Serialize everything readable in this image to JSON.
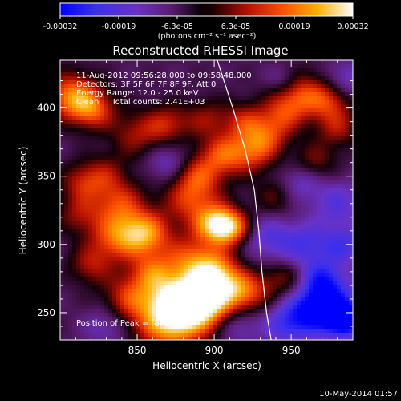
{
  "chart_data": {
    "type": "heatmap",
    "title": "Reconstructed RHESSI Image",
    "xlabel": "Heliocentric X (arcsec)",
    "ylabel": "Heliocentric Y (arcsec)",
    "xlim": [
      800,
      990
    ],
    "ylim": [
      230,
      435
    ],
    "x_ticks": [
      850,
      900,
      950
    ],
    "y_ticks": [
      250,
      300,
      350,
      400
    ],
    "colorbar": {
      "ticks": [
        "-0.00032",
        "-0.00019",
        "-6.3e-05",
        "6.3e-05",
        "0.00019",
        "0.00032"
      ],
      "range": [
        -0.00032,
        0.00032
      ],
      "unit_label": "(photons cm⁻² s⁻¹ asec⁻²)"
    },
    "annotations": [
      "11-Aug-2012 09:56:28.000 to 09:58:48.000",
      "Detectors: 3F 5F 6F 7F 8F 9F, Att 0",
      "Energy Range: 12.0 - 25.0 keV",
      "Clean     Total counts: 2.41E+03"
    ],
    "peak_label": "Position of Peak = [873,235]",
    "peak": [
      873,
      235
    ],
    "limb": [
      [
        902,
        435
      ],
      [
        912,
        400
      ],
      [
        920,
        370
      ],
      [
        926,
        340
      ],
      [
        929,
        310
      ],
      [
        931,
        280
      ],
      [
        934,
        250
      ],
      [
        937,
        230
      ]
    ],
    "blobs": [
      {
        "x": 872,
        "y": 245,
        "a": 1.0,
        "r": 16
      },
      {
        "x": 880,
        "y": 262,
        "a": 0.8,
        "r": 14
      },
      {
        "x": 895,
        "y": 255,
        "a": 0.6,
        "r": 12
      },
      {
        "x": 905,
        "y": 270,
        "a": 0.7,
        "r": 12
      },
      {
        "x": 922,
        "y": 265,
        "a": 0.5,
        "r": 10
      },
      {
        "x": 945,
        "y": 275,
        "a": 0.35,
        "r": 10
      },
      {
        "x": 845,
        "y": 262,
        "a": 0.5,
        "r": 12
      },
      {
        "x": 860,
        "y": 280,
        "a": 0.5,
        "r": 10
      },
      {
        "x": 885,
        "y": 290,
        "a": 0.55,
        "r": 12
      },
      {
        "x": 900,
        "y": 283,
        "a": 0.45,
        "r": 10
      },
      {
        "x": 855,
        "y": 308,
        "a": 0.85,
        "r": 12
      },
      {
        "x": 835,
        "y": 305,
        "a": 0.55,
        "r": 12
      },
      {
        "x": 820,
        "y": 285,
        "a": 0.4,
        "r": 10
      },
      {
        "x": 838,
        "y": 330,
        "a": 0.55,
        "r": 12
      },
      {
        "x": 815,
        "y": 345,
        "a": 0.45,
        "r": 10
      },
      {
        "x": 812,
        "y": 322,
        "a": 0.35,
        "r": 10
      },
      {
        "x": 830,
        "y": 352,
        "a": 0.3,
        "r": 10
      },
      {
        "x": 902,
        "y": 315,
        "a": 1.0,
        "r": 10
      },
      {
        "x": 912,
        "y": 312,
        "a": 0.55,
        "r": 9
      },
      {
        "x": 885,
        "y": 333,
        "a": 0.55,
        "r": 12
      },
      {
        "x": 890,
        "y": 350,
        "a": 0.45,
        "r": 10
      },
      {
        "x": 905,
        "y": 365,
        "a": 0.6,
        "r": 11
      },
      {
        "x": 925,
        "y": 368,
        "a": 0.55,
        "r": 11
      },
      {
        "x": 935,
        "y": 380,
        "a": 0.4,
        "r": 10
      },
      {
        "x": 920,
        "y": 390,
        "a": 0.45,
        "r": 10
      },
      {
        "x": 808,
        "y": 408,
        "a": 0.8,
        "r": 12
      },
      {
        "x": 822,
        "y": 398,
        "a": 0.55,
        "r": 10
      },
      {
        "x": 850,
        "y": 380,
        "a": 0.4,
        "r": 12
      },
      {
        "x": 870,
        "y": 388,
        "a": 0.45,
        "r": 10
      },
      {
        "x": 895,
        "y": 392,
        "a": 0.35,
        "r": 10
      },
      {
        "x": 955,
        "y": 410,
        "a": 0.6,
        "r": 12
      },
      {
        "x": 975,
        "y": 405,
        "a": 0.5,
        "r": 10
      },
      {
        "x": 980,
        "y": 385,
        "a": 0.4,
        "r": 10
      },
      {
        "x": 945,
        "y": 395,
        "a": 0.4,
        "r": 10
      },
      {
        "x": 965,
        "y": 360,
        "a": 0.35,
        "r": 10
      },
      {
        "x": 940,
        "y": 335,
        "a": 0.3,
        "r": 10
      },
      {
        "x": 960,
        "y": 300,
        "a": -0.45,
        "r": 12
      },
      {
        "x": 975,
        "y": 255,
        "a": -0.7,
        "r": 14
      },
      {
        "x": 985,
        "y": 245,
        "a": -0.9,
        "r": 8
      },
      {
        "x": 960,
        "y": 250,
        "a": -0.5,
        "r": 12
      },
      {
        "x": 970,
        "y": 275,
        "a": -0.5,
        "r": 10
      },
      {
        "x": 935,
        "y": 305,
        "a": -0.4,
        "r": 12
      },
      {
        "x": 980,
        "y": 330,
        "a": -0.4,
        "r": 12
      },
      {
        "x": 955,
        "y": 345,
        "a": -0.35,
        "r": 10
      },
      {
        "x": 985,
        "y": 300,
        "a": -0.45,
        "r": 10
      },
      {
        "x": 945,
        "y": 240,
        "a": -0.4,
        "r": 10
      },
      {
        "x": 915,
        "y": 240,
        "a": -0.3,
        "r": 10
      },
      {
        "x": 830,
        "y": 240,
        "a": -0.3,
        "r": 10
      },
      {
        "x": 870,
        "y": 360,
        "a": -0.3,
        "r": 10
      },
      {
        "x": 945,
        "y": 420,
        "a": -0.3,
        "r": 8
      },
      {
        "x": 985,
        "y": 420,
        "a": -0.35,
        "r": 10
      }
    ]
  },
  "footer": {
    "timestamp": "10-May-2014 01:57"
  },
  "colors": {
    "background": "#000000",
    "axis": "#ffffff",
    "limb": "#ffffff"
  }
}
